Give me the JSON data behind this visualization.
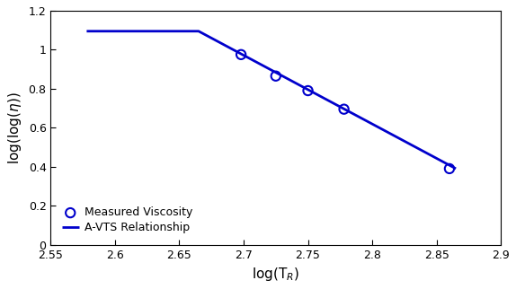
{
  "scatter_x": [
    2.698,
    2.725,
    2.75,
    2.778,
    2.86
  ],
  "scatter_y": [
    0.975,
    0.865,
    0.79,
    0.695,
    0.39
  ],
  "line_x": [
    2.578,
    2.665,
    2.865
  ],
  "line_y": [
    1.095,
    1.095,
    0.39
  ],
  "scatter_color": "#0000CC",
  "line_color": "#0000CC",
  "xlabel": "log(T$_R$)",
  "ylabel": "log(log($\\eta$))",
  "xlim": [
    2.55,
    2.9
  ],
  "ylim": [
    0,
    1.2
  ],
  "xticks": [
    2.55,
    2.6,
    2.65,
    2.7,
    2.75,
    2.8,
    2.85,
    2.9
  ],
  "yticks": [
    0,
    0.2,
    0.4,
    0.6,
    0.8,
    1.0,
    1.2
  ],
  "xtick_labels": [
    "2.55",
    "2.6",
    "2.65",
    "2.7",
    "2.75",
    "2.8",
    "2.85",
    "2.9"
  ],
  "ytick_labels": [
    "0",
    "0.2",
    "0.4",
    "0.6",
    "0.8",
    "1",
    "1.2"
  ],
  "legend_scatter": "Measured Viscosity",
  "legend_line": "A-VTS Relationship",
  "figsize": [
    5.74,
    3.22
  ],
  "dpi": 100,
  "line_width": 2.0
}
